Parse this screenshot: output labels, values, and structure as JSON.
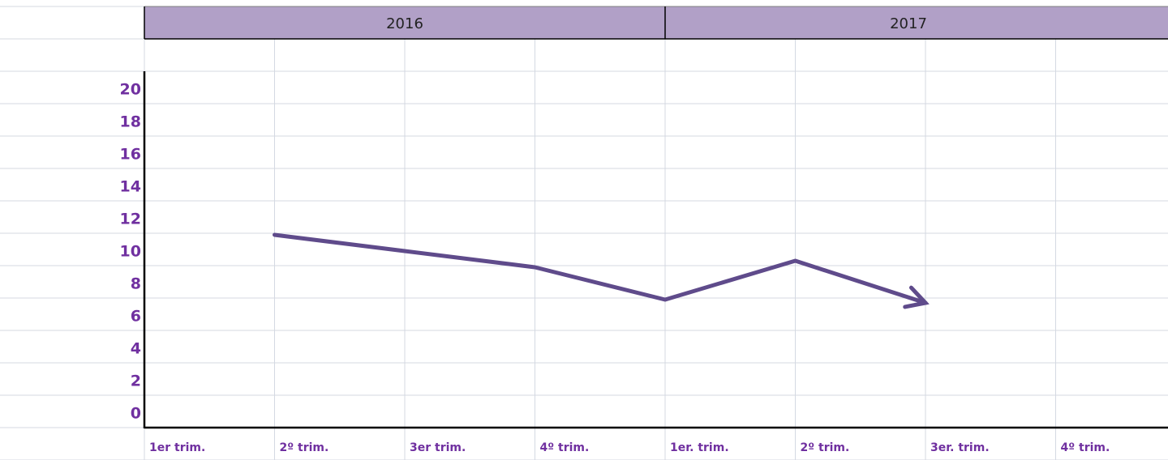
{
  "chart_data": {
    "type": "line",
    "groups": [
      "2016",
      "2017"
    ],
    "categories": [
      "1er trim.",
      "2º trim.",
      "3er trim.",
      "4º trim.",
      "1er. trim.",
      "2º trim.",
      "3er. trim.",
      "4º trim."
    ],
    "series": [
      {
        "color": "#5f4b8b",
        "values": [
          null,
          11,
          10,
          9,
          7,
          9.4,
          6.8,
          null
        ]
      }
    ],
    "ylim": [
      0,
      20
    ],
    "yticks": [
      0,
      2,
      4,
      6,
      8,
      10,
      12,
      14,
      16,
      18,
      20
    ],
    "header_color": "#b1a0c7",
    "label_color": "#7030a0"
  }
}
